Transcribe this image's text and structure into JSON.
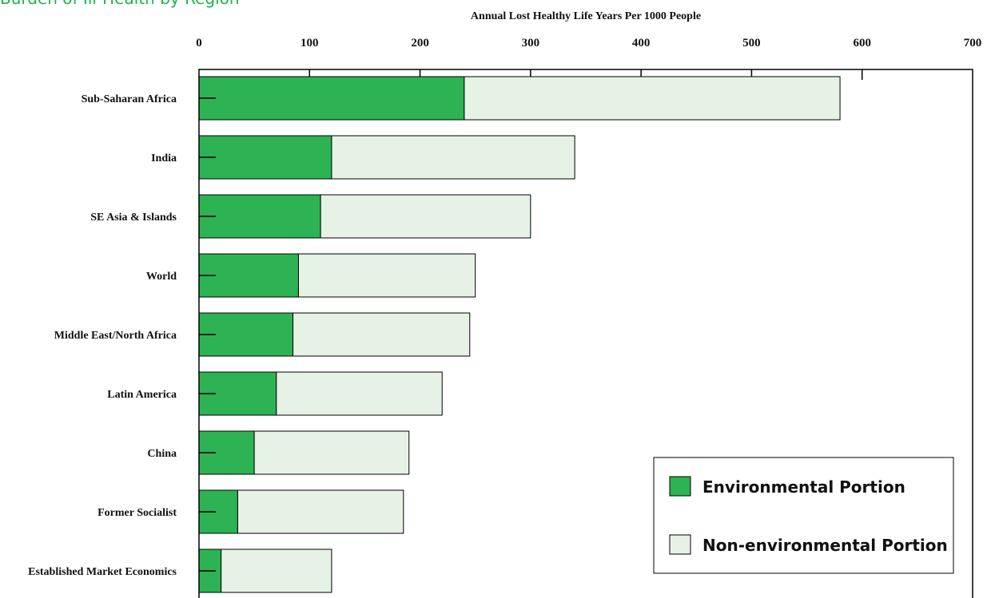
{
  "chart_data": {
    "type": "bar",
    "orientation": "horizontal",
    "stacked": true,
    "title": "Burden of Ill-Health by Region",
    "xlabel": "Annual Lost Healthy Life Years Per 1000 People",
    "ylabel": "",
    "xlim": [
      0,
      700
    ],
    "x_ticks": [
      0,
      100,
      200,
      300,
      400,
      500,
      600,
      700
    ],
    "categories": [
      "Sub-Saharan Africa",
      "India",
      "SE Asia & Islands",
      "World",
      "Middle East/North Africa",
      "Latin America",
      "China",
      "Former Socialist",
      "Established Market Economics"
    ],
    "series": [
      {
        "name": "Environmental Portion",
        "color": "#2db353",
        "values": [
          240,
          120,
          110,
          90,
          85,
          70,
          50,
          35,
          20
        ]
      },
      {
        "name": "Non-environmental Portion",
        "color": "#e5f2e5",
        "values": [
          340,
          220,
          190,
          160,
          160,
          150,
          140,
          150,
          100
        ]
      }
    ],
    "grid": false,
    "legend_position": "bottom-right"
  }
}
